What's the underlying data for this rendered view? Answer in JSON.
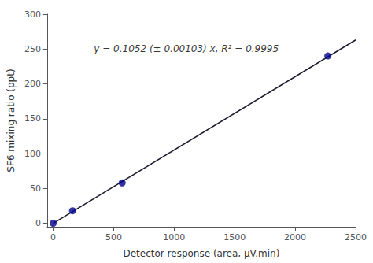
{
  "chart_data": {
    "type": "scatter",
    "xlabel": "Detector response (area, μV.min)",
    "ylabel": "SF6 mixing ratio (ppt)",
    "series": [
      {
        "type": "line",
        "color": "#1a1a2e",
        "x": [
          0,
          2500
        ],
        "values": [
          0,
          263.0
        ]
      },
      {
        "type": "scatter",
        "color": "#00008B",
        "marker": "circle",
        "x": [
          0,
          160,
          570,
          2270
        ],
        "values": [
          0,
          18,
          58,
          240
        ]
      }
    ],
    "annotations": [
      {
        "text": "y = 0.1052 (± 0.00103) x, R² = 0.9995",
        "x": 1100,
        "y": 250
      }
    ],
    "xlim": [
      -50,
      2500
    ],
    "ylim": [
      -5,
      300
    ],
    "xticks": [
      0,
      500,
      1000,
      1500,
      2000,
      2500
    ],
    "yticks": [
      0,
      50,
      100,
      150,
      200,
      250,
      300
    ],
    "grid": false
  }
}
